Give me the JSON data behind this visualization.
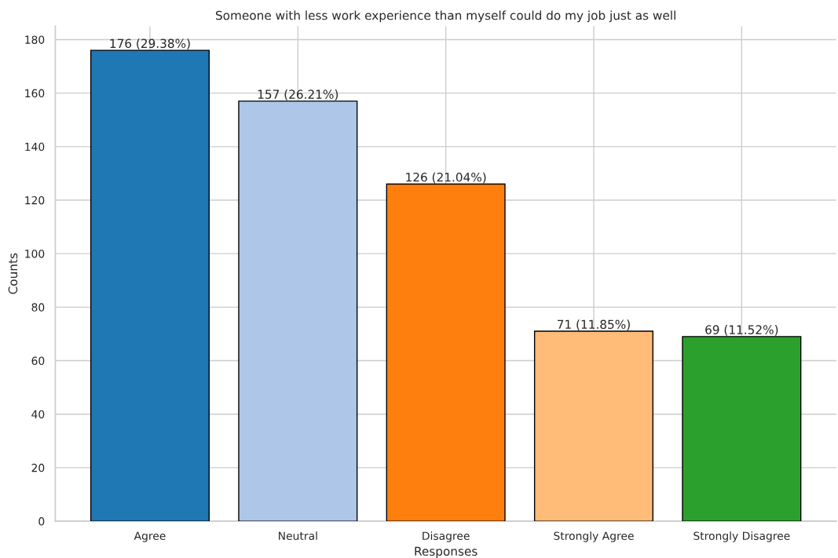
{
  "chart_data": {
    "type": "bar",
    "title": "Someone with less work experience than myself could do my job just as well",
    "xlabel": "Responses",
    "ylabel": "Counts",
    "categories": [
      "Agree",
      "Neutral",
      "Disagree",
      "Strongly Agree",
      "Strongly Disagree"
    ],
    "values": [
      176,
      157,
      126,
      71,
      69
    ],
    "colors": [
      "#1f77b4",
      "#aec7e8",
      "#ff7f0e",
      "#ffbb78",
      "#2ca02c"
    ],
    "value_labels": [
      "176 (29.38%)",
      "157 (26.21%)",
      "126 (21.04%)",
      "71 (11.85%)",
      "69 (11.52%)"
    ],
    "ylim": [
      0,
      185
    ],
    "yticks": [
      0,
      20,
      40,
      60,
      80,
      100,
      120,
      140,
      160,
      180
    ],
    "grid": true
  }
}
